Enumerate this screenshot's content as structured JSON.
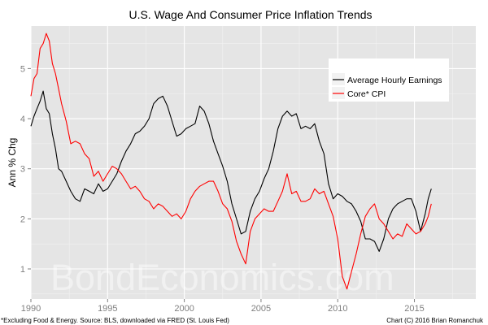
{
  "chart_data": {
    "type": "line",
    "title": "U.S. Wage And Consumer Price Inflation Trends",
    "xlabel": "",
    "ylabel": "Ann % Chg",
    "xlim": [
      1990,
      2019
    ],
    "ylim": [
      0.4,
      5.85
    ],
    "x_ticks": [
      1990,
      1995,
      2000,
      2005,
      2010,
      2015
    ],
    "x_tick_labels": [
      "1990",
      "1995",
      "2000",
      "2005",
      "2010",
      "2015"
    ],
    "y_ticks": [
      1,
      2,
      3,
      4,
      5
    ],
    "y_tick_labels": [
      "1",
      "2",
      "3",
      "4",
      "5"
    ],
    "grid": true,
    "legend_position": "top-right",
    "series": [
      {
        "name": "Average Hourly Earnings",
        "color": "#000000",
        "x": [
          1990.0,
          1990.2,
          1990.4,
          1990.6,
          1990.8,
          1991.0,
          1991.2,
          1991.4,
          1991.6,
          1991.8,
          1992.0,
          1992.3,
          1992.6,
          1992.9,
          1993.2,
          1993.5,
          1993.8,
          1994.1,
          1994.4,
          1994.7,
          1995.0,
          1995.3,
          1995.6,
          1995.9,
          1996.2,
          1996.5,
          1996.8,
          1997.1,
          1997.4,
          1997.7,
          1998.0,
          1998.3,
          1998.6,
          1998.9,
          1999.2,
          1999.5,
          1999.8,
          2000.1,
          2000.4,
          2000.7,
          2001.0,
          2001.3,
          2001.6,
          2001.9,
          2002.2,
          2002.5,
          2002.8,
          2003.1,
          2003.4,
          2003.7,
          2004.0,
          2004.3,
          2004.6,
          2004.9,
          2005.2,
          2005.5,
          2005.8,
          2006.1,
          2006.4,
          2006.7,
          2007.0,
          2007.3,
          2007.6,
          2007.9,
          2008.2,
          2008.5,
          2008.8,
          2009.1,
          2009.4,
          2009.7,
          2010.0,
          2010.3,
          2010.6,
          2010.9,
          2011.2,
          2011.5,
          2011.8,
          2012.1,
          2012.4,
          2012.7,
          2013.0,
          2013.3,
          2013.6,
          2013.9,
          2014.2,
          2014.5,
          2014.8,
          2015.1,
          2015.4,
          2015.7,
          2015.9,
          2016.1
        ],
        "values": [
          3.85,
          4.05,
          4.2,
          4.35,
          4.55,
          4.2,
          4.1,
          3.7,
          3.4,
          3.0,
          2.95,
          2.75,
          2.55,
          2.4,
          2.35,
          2.6,
          2.55,
          2.5,
          2.7,
          2.55,
          2.6,
          2.75,
          2.9,
          3.15,
          3.35,
          3.5,
          3.7,
          3.75,
          3.85,
          4.0,
          4.3,
          4.4,
          4.45,
          4.25,
          3.95,
          3.65,
          3.7,
          3.8,
          3.85,
          3.9,
          4.25,
          4.15,
          3.9,
          3.55,
          3.3,
          3.05,
          2.75,
          2.3,
          2.0,
          1.7,
          1.75,
          2.15,
          2.4,
          2.55,
          2.8,
          3.0,
          3.35,
          3.8,
          4.05,
          4.15,
          4.05,
          4.1,
          3.8,
          3.85,
          3.8,
          3.9,
          3.55,
          3.3,
          2.7,
          2.4,
          2.5,
          2.45,
          2.35,
          2.3,
          2.15,
          1.95,
          1.6,
          1.6,
          1.55,
          1.35,
          1.6,
          2.0,
          2.2,
          2.3,
          2.35,
          2.4,
          2.4,
          2.15,
          1.75,
          2.1,
          2.4,
          2.6
        ]
      },
      {
        "name": "Core* CPI",
        "color": "#ff0000",
        "x": [
          1990.0,
          1990.2,
          1990.4,
          1990.6,
          1990.8,
          1991.0,
          1991.2,
          1991.4,
          1991.6,
          1991.8,
          1992.0,
          1992.3,
          1992.6,
          1992.9,
          1993.2,
          1993.5,
          1993.8,
          1994.1,
          1994.4,
          1994.7,
          1995.0,
          1995.3,
          1995.6,
          1995.9,
          1996.2,
          1996.5,
          1996.8,
          1997.1,
          1997.4,
          1997.7,
          1998.0,
          1998.3,
          1998.6,
          1998.9,
          1999.2,
          1999.5,
          1999.8,
          2000.1,
          2000.4,
          2000.7,
          2001.0,
          2001.3,
          2001.6,
          2001.9,
          2002.2,
          2002.5,
          2002.8,
          2003.1,
          2003.4,
          2003.7,
          2004.0,
          2004.3,
          2004.6,
          2004.9,
          2005.2,
          2005.5,
          2005.8,
          2006.1,
          2006.4,
          2006.7,
          2007.0,
          2007.3,
          2007.6,
          2007.9,
          2008.2,
          2008.5,
          2008.8,
          2009.1,
          2009.4,
          2009.7,
          2010.0,
          2010.3,
          2010.6,
          2010.9,
          2011.2,
          2011.5,
          2011.8,
          2012.1,
          2012.4,
          2012.7,
          2013.0,
          2013.3,
          2013.6,
          2013.9,
          2014.2,
          2014.5,
          2014.8,
          2015.1,
          2015.4,
          2015.7,
          2015.9,
          2016.1
        ],
        "values": [
          4.45,
          4.8,
          4.9,
          5.4,
          5.5,
          5.7,
          5.55,
          5.1,
          4.9,
          4.6,
          4.3,
          3.95,
          3.5,
          3.55,
          3.5,
          3.3,
          3.2,
          2.85,
          2.95,
          2.75,
          2.9,
          3.05,
          3.0,
          2.9,
          2.75,
          2.6,
          2.65,
          2.55,
          2.4,
          2.35,
          2.2,
          2.3,
          2.25,
          2.15,
          2.05,
          2.1,
          2.0,
          2.15,
          2.4,
          2.55,
          2.65,
          2.7,
          2.75,
          2.75,
          2.55,
          2.3,
          2.2,
          1.95,
          1.55,
          1.3,
          1.1,
          1.75,
          2.0,
          2.1,
          2.2,
          2.15,
          2.15,
          2.35,
          2.55,
          2.9,
          2.5,
          2.55,
          2.35,
          2.35,
          2.4,
          2.6,
          2.5,
          2.55,
          2.3,
          2.05,
          1.6,
          0.85,
          0.6,
          0.95,
          1.3,
          1.7,
          2.05,
          2.2,
          2.3,
          2.0,
          1.9,
          1.75,
          1.6,
          1.7,
          1.65,
          1.9,
          1.8,
          1.7,
          1.75,
          1.9,
          2.05,
          2.3
        ]
      }
    ],
    "legend": {
      "entries": [
        "Average Hourly Earnings",
        "Core* CPI"
      ]
    }
  },
  "footnote_left": "*Excluding Food & Energy. Source: BLS, downloaded via FRED (St. Louis Fed)",
  "footnote_right": "Chart (C) 2016 Brian Romanchuk",
  "watermark": "BondEconomics.com"
}
